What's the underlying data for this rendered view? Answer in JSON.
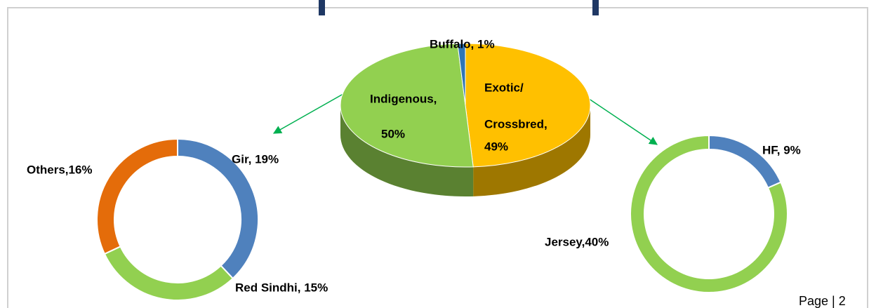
{
  "chart_data": [
    {
      "type": "pie3d",
      "values": [
        49,
        50,
        1
      ],
      "colors": [
        "#ffc000",
        "#92d050",
        "#2e75b6"
      ],
      "value_labels": [
        [
          "Exotic/",
          "Crossbred,",
          "49%"
        ],
        [
          "Indigenous,",
          "50%"
        ],
        [
          "Buffalo, 1%"
        ]
      ]
    },
    {
      "type": "donut",
      "values": [
        19,
        15,
        16
      ],
      "colors": [
        "#4f81bd",
        "#92d050",
        "#e46c0a"
      ],
      "value_labels": [
        "Gir, 19%",
        "Red Sindhi, 15%",
        "Others,16%"
      ]
    },
    {
      "type": "donut",
      "values": [
        9,
        40
      ],
      "colors": [
        "#4f81bd",
        "#92d050"
      ],
      "value_labels": [
        "HF, 9%",
        "Jersey,40%"
      ]
    }
  ],
  "footer": "Page | 2"
}
